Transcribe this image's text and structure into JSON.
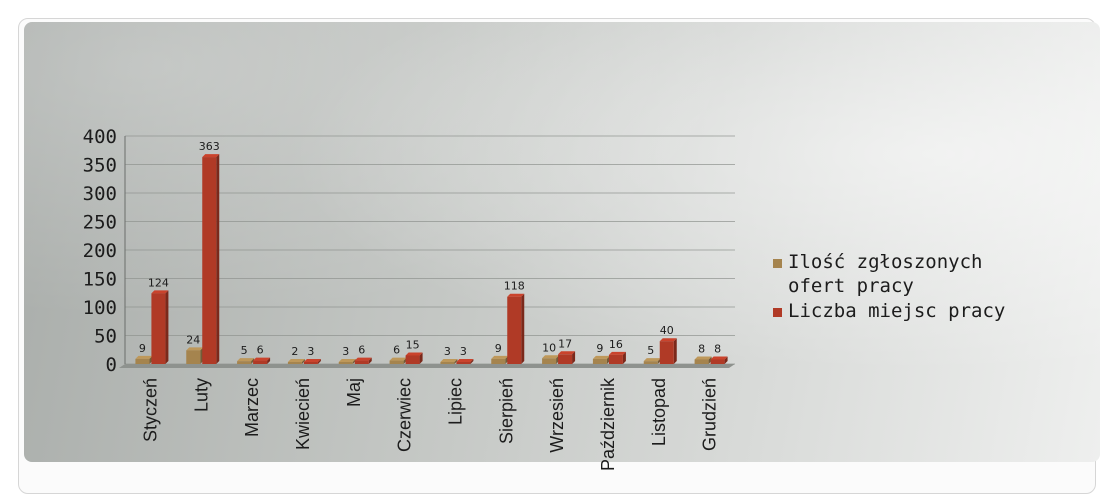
{
  "chart_data": {
    "type": "bar",
    "title": "",
    "xlabel": "",
    "ylabel": "",
    "ylim": [
      0,
      400
    ],
    "yticks": [
      0,
      50,
      100,
      150,
      200,
      250,
      300,
      350,
      400
    ],
    "grid": true,
    "legend_position": "right",
    "categories": [
      "Styczeń",
      "Luty",
      "Marzec",
      "Kwiecień",
      "Maj",
      "Czerwiec",
      "Lipiec",
      "Sierpień",
      "Wrzesień",
      "Październik",
      "Listopad",
      "Grudzień"
    ],
    "series": [
      {
        "name": "Ilość zgłoszonych ofert pracy",
        "legend_lines": [
          "Ilość zgłoszonych",
          "ofert pracy"
        ],
        "color": "#a5844e",
        "values": [
          9,
          24,
          5,
          2,
          3,
          6,
          3,
          9,
          10,
          9,
          5,
          8
        ]
      },
      {
        "name": "Liczba miejsc pracy",
        "legend_lines": [
          "Liczba miejsc pracy"
        ],
        "color": "#b03a26",
        "values": [
          124,
          363,
          6,
          3,
          6,
          15,
          3,
          118,
          17,
          16,
          40,
          8
        ]
      }
    ]
  }
}
